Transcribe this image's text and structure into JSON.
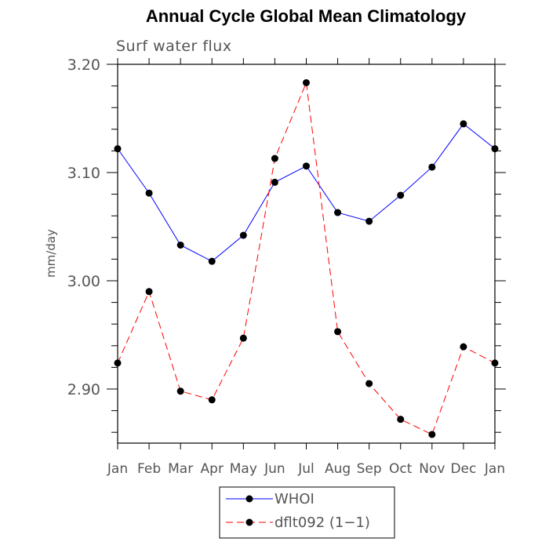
{
  "chart_data": {
    "type": "line",
    "title": "Annual Cycle Global Mean Climatology",
    "subtitle": "Surf water flux",
    "xlabel": "",
    "ylabel": "mm/day",
    "categories": [
      "Jan",
      "Feb",
      "Mar",
      "Apr",
      "May",
      "Jun",
      "Jul",
      "Aug",
      "Sep",
      "Oct",
      "Nov",
      "Dec",
      "Jan"
    ],
    "ylim": [
      2.85,
      3.2
    ],
    "yticks": [
      {
        "value": 2.9,
        "label": "2.90"
      },
      {
        "value": 3.0,
        "label": "3.00"
      },
      {
        "value": 3.1,
        "label": "3.10"
      },
      {
        "value": 3.2,
        "label": "3.20"
      }
    ],
    "legend_position": "bottom-center",
    "grid": false,
    "series": [
      {
        "name": "WHOI",
        "color": "#0000ff",
        "line_style": "solid",
        "values": [
          3.122,
          3.081,
          3.033,
          3.018,
          3.042,
          3.091,
          3.106,
          3.063,
          3.055,
          3.079,
          3.105,
          3.145,
          3.122
        ]
      },
      {
        "name": "dflt092 (1−1)",
        "color": "#ff0000",
        "line_style": "dashed",
        "values": [
          2.924,
          2.99,
          2.898,
          2.89,
          2.947,
          3.113,
          3.183,
          2.953,
          2.905,
          2.872,
          2.858,
          2.939,
          2.924
        ]
      }
    ]
  }
}
